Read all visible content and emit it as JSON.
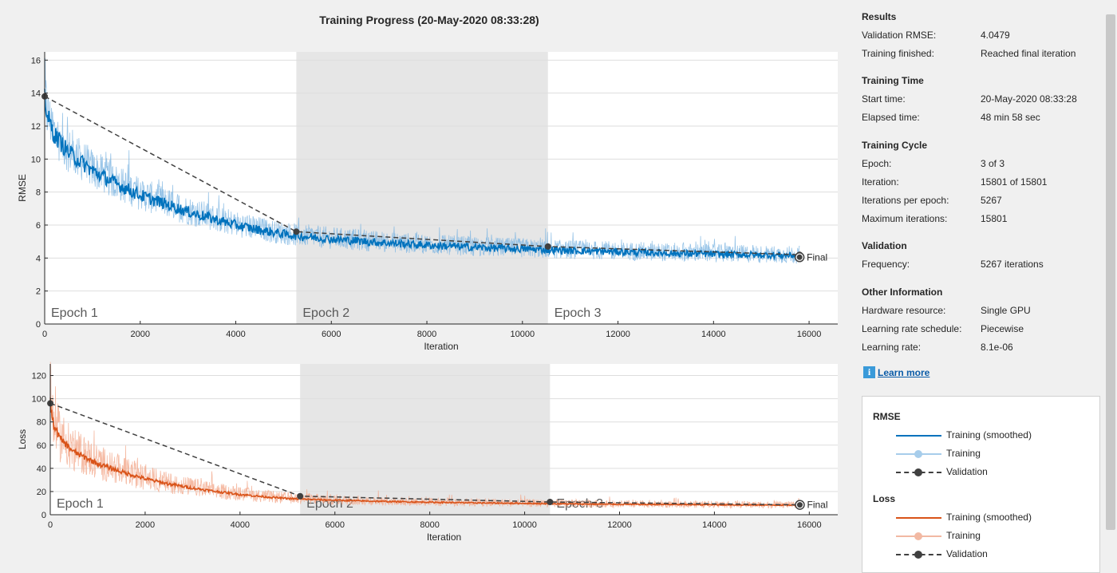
{
  "title": "Training Progress (20-May-2020 08:33:28)",
  "chart_data": [
    {
      "type": "line",
      "ylabel": "RMSE",
      "xlabel": "Iteration",
      "xlim": [
        0,
        16600
      ],
      "ylim": [
        0,
        16.5
      ],
      "xticks": [
        0,
        2000,
        4000,
        6000,
        8000,
        10000,
        12000,
        14000,
        16000
      ],
      "yticks": [
        0,
        2,
        4,
        6,
        8,
        10,
        12,
        14,
        16
      ],
      "grid": true,
      "epochs": [
        {
          "label": "Epoch 1",
          "start": 0,
          "end": 5267,
          "shaded": false
        },
        {
          "label": "Epoch 2",
          "start": 5267,
          "end": 10534,
          "shaded": true
        },
        {
          "label": "Epoch 3",
          "start": 10534,
          "end": 15801,
          "shaded": false
        }
      ],
      "series": [
        {
          "name": "Training (smoothed)",
          "color": "#0072bd",
          "x": [
            1,
            50,
            200,
            500,
            1000,
            1500,
            2000,
            2500,
            3000,
            3500,
            4000,
            4500,
            5000,
            5267,
            6000,
            7000,
            8000,
            9000,
            10000,
            10534,
            11000,
            12000,
            13000,
            14000,
            15000,
            15801
          ],
          "y": [
            14.0,
            12.6,
            11.5,
            10.4,
            9.3,
            8.5,
            7.8,
            7.3,
            6.8,
            6.4,
            6.0,
            5.7,
            5.45,
            5.35,
            5.15,
            4.95,
            4.78,
            4.65,
            4.55,
            4.5,
            4.45,
            4.38,
            4.3,
            4.24,
            4.18,
            4.15
          ]
        },
        {
          "name": "Training",
          "color": "#7fb7e2",
          "x": [
            1,
            50,
            200,
            500,
            1000,
            1500,
            2000,
            2500,
            3000,
            3500,
            4000,
            4500,
            5000,
            5267,
            6000,
            7000,
            8000,
            9000,
            10000,
            10534,
            11000,
            12000,
            13000,
            14000,
            15000,
            15801
          ],
          "y": [
            14.0,
            12.6,
            11.5,
            10.4,
            9.3,
            8.5,
            7.8,
            7.3,
            6.8,
            6.4,
            6.0,
            5.7,
            5.45,
            5.35,
            5.15,
            4.95,
            4.78,
            4.65,
            4.55,
            4.5,
            4.45,
            4.38,
            4.3,
            4.24,
            4.18,
            4.15
          ]
        },
        {
          "name": "Validation",
          "color": "#404040",
          "x": [
            1,
            5267,
            10534,
            15801
          ],
          "y": [
            13.8,
            5.6,
            4.7,
            4.2
          ]
        }
      ],
      "final": {
        "label": "Final",
        "x": 15801,
        "y": 4.05
      }
    },
    {
      "type": "line",
      "ylabel": "Loss",
      "xlabel": "Iteration",
      "xlim": [
        0,
        16600
      ],
      "ylim": [
        0,
        130
      ],
      "xticks": [
        0,
        2000,
        4000,
        6000,
        8000,
        10000,
        12000,
        14000,
        16000
      ],
      "yticks": [
        0,
        20,
        40,
        60,
        80,
        100,
        120
      ],
      "grid": true,
      "epochs": [
        {
          "label": "Epoch 1",
          "start": 0,
          "end": 5267,
          "shaded": false
        },
        {
          "label": "Epoch 2",
          "start": 5267,
          "end": 10534,
          "shaded": true
        },
        {
          "label": "Epoch 3",
          "start": 10534,
          "end": 15801,
          "shaded": false
        }
      ],
      "series": [
        {
          "name": "Training (smoothed)",
          "color": "#d95319",
          "x": [
            1,
            50,
            200,
            500,
            1000,
            1500,
            2000,
            2500,
            3000,
            3500,
            4000,
            4500,
            5000,
            5267,
            6000,
            7000,
            8000,
            9000,
            10000,
            10534,
            11000,
            12000,
            13000,
            14000,
            15000,
            15801
          ],
          "y": [
            98,
            80,
            66,
            54,
            44,
            37,
            31,
            26.5,
            23,
            20,
            17.5,
            15.5,
            14,
            13.5,
            12.5,
            11.5,
            10.8,
            10.2,
            9.8,
            9.5,
            9.3,
            9.0,
            8.8,
            8.6,
            8.4,
            8.3
          ]
        },
        {
          "name": "Training",
          "color": "#f2a98c",
          "x": [
            1,
            50,
            200,
            500,
            1000,
            1500,
            2000,
            2500,
            3000,
            3500,
            4000,
            4500,
            5000,
            5267,
            6000,
            7000,
            8000,
            9000,
            10000,
            10534,
            11000,
            12000,
            13000,
            14000,
            15000,
            15801
          ],
          "y": [
            98,
            80,
            66,
            54,
            44,
            37,
            31,
            26.5,
            23,
            20,
            17.5,
            15.5,
            14,
            13.5,
            12.5,
            11.5,
            10.8,
            10.2,
            9.8,
            9.5,
            9.3,
            9.0,
            8.8,
            8.6,
            8.4,
            8.3
          ]
        },
        {
          "name": "Validation",
          "color": "#404040",
          "x": [
            1,
            5267,
            10534,
            15801
          ],
          "y": [
            96,
            16,
            11,
            8.5
          ]
        }
      ],
      "final": {
        "label": "Final",
        "x": 15801,
        "y": 8.5
      }
    }
  ],
  "side": {
    "sections": [
      {
        "title": "Results",
        "rows": [
          {
            "label": "Validation RMSE:",
            "value": "4.0479"
          },
          {
            "label": "Training finished:",
            "value": "Reached final iteration"
          }
        ]
      },
      {
        "title": "Training Time",
        "rows": [
          {
            "label": "Start time:",
            "value": "20-May-2020 08:33:28"
          },
          {
            "label": "Elapsed time:",
            "value": "48 min 58 sec"
          }
        ]
      },
      {
        "title": "Training Cycle",
        "rows": [
          {
            "label": "Epoch:",
            "value": "3 of 3"
          },
          {
            "label": "Iteration:",
            "value": "15801 of 15801"
          },
          {
            "label": "Iterations per epoch:",
            "value": "5267"
          },
          {
            "label": "Maximum iterations:",
            "value": "15801"
          }
        ]
      },
      {
        "title": "Validation",
        "rows": [
          {
            "label": "Frequency:",
            "value": "5267 iterations"
          }
        ]
      },
      {
        "title": "Other Information",
        "rows": [
          {
            "label": "Hardware resource:",
            "value": "Single GPU"
          },
          {
            "label": "Learning rate schedule:",
            "value": "Piecewise"
          },
          {
            "label": "Learning rate:",
            "value": "8.1e-06"
          }
        ]
      }
    ],
    "learn_more": "Learn more",
    "info_icon": "i"
  },
  "legend": {
    "groups": [
      {
        "title": "RMSE",
        "items": [
          {
            "label": "Training (smoothed)",
            "style": "solid",
            "color": "#0072bd"
          },
          {
            "label": "Training",
            "style": "marker",
            "color": "#a7cdeb"
          },
          {
            "label": "Validation",
            "style": "dashed-marker",
            "color": "#404040"
          }
        ]
      },
      {
        "title": "Loss",
        "items": [
          {
            "label": "Training (smoothed)",
            "style": "solid",
            "color": "#d95319"
          },
          {
            "label": "Training",
            "style": "marker",
            "color": "#f2b9a3"
          },
          {
            "label": "Validation",
            "style": "dashed-marker",
            "color": "#404040"
          }
        ]
      }
    ]
  }
}
